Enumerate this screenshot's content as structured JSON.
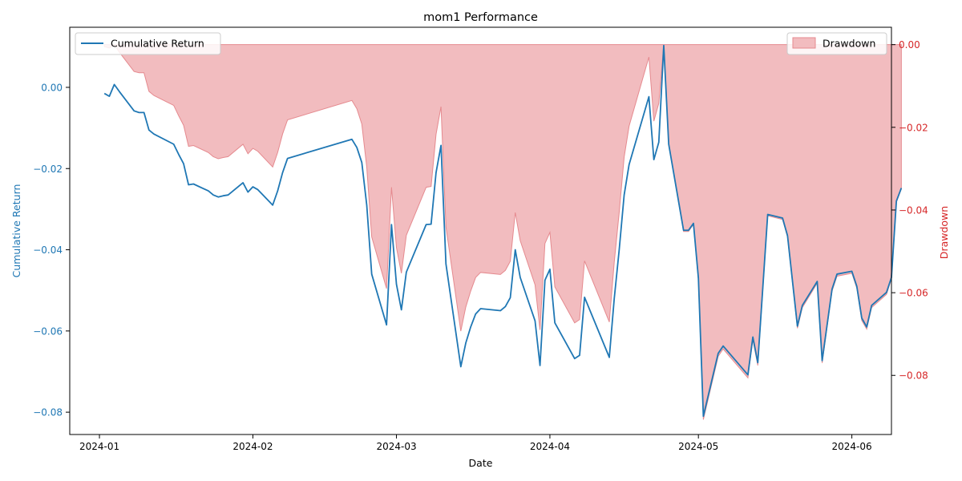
{
  "chart_data": {
    "type": "line",
    "title": "mom1 Performance",
    "xlabel": "Date",
    "ylabel_left": "Cumulative Return",
    "ylabel_right": "Drawdown",
    "colors": {
      "cumulative": "#1f77b4",
      "drawdown_fill": "#f2bcbf",
      "drawdown_edge": "#e58a8f",
      "right_axis": "#d62728"
    },
    "x_ticks": [
      "2024-01-01",
      "2024-02-01",
      "2024-03-01",
      "2024-04-01",
      "2024-05-01",
      "2024-06-01"
    ],
    "x_tick_labels": [
      "2024-01",
      "2024-02",
      "2024-03",
      "2024-04",
      "2024-05",
      "2024-06"
    ],
    "xlim": [
      "2023-12-26",
      "2024-06-09"
    ],
    "y_left": {
      "lim": [
        -0.0855,
        0.0148
      ],
      "ticks": [
        0.0,
        -0.02,
        -0.04,
        -0.06,
        -0.08
      ],
      "tick_labels": [
        "0.00",
        "−0.02",
        "−0.04",
        "−0.06",
        "−0.08"
      ]
    },
    "y_right": {
      "lim": [
        -0.0943,
        0.0042
      ],
      "ticks": [
        0.0,
        -0.02,
        -0.04,
        -0.06,
        -0.08
      ],
      "tick_labels": [
        "0.00",
        "−0.02",
        "−0.04",
        "−0.06",
        "−0.08"
      ]
    },
    "legend_left": {
      "position": "upper-left",
      "label": "Cumulative Return"
    },
    "legend_right": {
      "position": "upper-right",
      "label": "Drawdown"
    },
    "series": [
      {
        "name": "Cumulative Return",
        "axis": "left",
        "points": [
          [
            "2024-01-02",
            -0.0015
          ],
          [
            "2024-01-03",
            -0.0022
          ],
          [
            "2024-01-04",
            0.0007
          ],
          [
            "2024-01-05",
            -0.001
          ],
          [
            "2024-01-08",
            -0.0058
          ],
          [
            "2024-01-09",
            -0.0062
          ],
          [
            "2024-01-10",
            -0.0062
          ],
          [
            "2024-01-11",
            -0.0105
          ],
          [
            "2024-01-12",
            -0.0115
          ],
          [
            "2024-01-16",
            -0.014
          ],
          [
            "2024-01-17",
            -0.0165
          ],
          [
            "2024-01-18",
            -0.0188
          ],
          [
            "2024-01-19",
            -0.024
          ],
          [
            "2024-01-20",
            -0.0238
          ],
          [
            "2024-01-23",
            -0.0255
          ],
          [
            "2024-01-24",
            -0.0265
          ],
          [
            "2024-01-25",
            -0.027
          ],
          [
            "2024-01-26",
            -0.0267
          ],
          [
            "2024-01-27",
            -0.0265
          ],
          [
            "2024-01-30",
            -0.0235
          ],
          [
            "2024-01-31",
            -0.0258
          ],
          [
            "2024-02-01",
            -0.0245
          ],
          [
            "2024-02-02",
            -0.0252
          ],
          [
            "2024-02-05",
            -0.029
          ],
          [
            "2024-02-06",
            -0.0255
          ],
          [
            "2024-02-07",
            -0.021
          ],
          [
            "2024-02-08",
            -0.0175
          ],
          [
            "2024-02-21",
            -0.0128
          ],
          [
            "2024-02-22",
            -0.0148
          ],
          [
            "2024-02-23",
            -0.0185
          ],
          [
            "2024-02-24",
            -0.029
          ],
          [
            "2024-02-25",
            -0.046
          ],
          [
            "2024-02-28",
            -0.0585
          ],
          [
            "2024-02-29",
            -0.0338
          ],
          [
            "2024-03-01",
            -0.0485
          ],
          [
            "2024-03-02",
            -0.0548
          ],
          [
            "2024-03-03",
            -0.0455
          ],
          [
            "2024-03-07",
            -0.0338
          ],
          [
            "2024-03-08",
            -0.0337
          ],
          [
            "2024-03-09",
            -0.021
          ],
          [
            "2024-03-10",
            -0.0143
          ],
          [
            "2024-03-11",
            -0.0435
          ],
          [
            "2024-03-14",
            -0.0688
          ],
          [
            "2024-03-15",
            -0.063
          ],
          [
            "2024-03-16",
            -0.059
          ],
          [
            "2024-03-17",
            -0.0558
          ],
          [
            "2024-03-18",
            -0.0545
          ],
          [
            "2024-03-22",
            -0.055
          ],
          [
            "2024-03-23",
            -0.054
          ],
          [
            "2024-03-24",
            -0.0518
          ],
          [
            "2024-03-25",
            -0.04
          ],
          [
            "2024-03-26",
            -0.0468
          ],
          [
            "2024-03-29",
            -0.0575
          ],
          [
            "2024-03-30",
            -0.0685
          ],
          [
            "2024-03-31",
            -0.0475
          ],
          [
            "2024-04-01",
            -0.0448
          ],
          [
            "2024-04-02",
            -0.058
          ],
          [
            "2024-04-06",
            -0.0668
          ],
          [
            "2024-04-07",
            -0.066
          ],
          [
            "2024-04-08",
            -0.0517
          ],
          [
            "2024-04-13",
            -0.0665
          ],
          [
            "2024-04-14",
            -0.052
          ],
          [
            "2024-04-15",
            -0.04
          ],
          [
            "2024-04-16",
            -0.0265
          ],
          [
            "2024-04-17",
            -0.019
          ],
          [
            "2024-04-21",
            -0.0023
          ],
          [
            "2024-04-22",
            -0.0178
          ],
          [
            "2024-04-23",
            -0.0135
          ],
          [
            "2024-04-24",
            0.0103
          ],
          [
            "2024-04-25",
            -0.014
          ],
          [
            "2024-04-28",
            -0.0352
          ],
          [
            "2024-04-29",
            -0.0352
          ],
          [
            "2024-04-30",
            -0.0335
          ],
          [
            "2024-05-01",
            -0.047
          ],
          [
            "2024-05-02",
            -0.081
          ],
          [
            "2024-05-05",
            -0.0655
          ],
          [
            "2024-05-06",
            -0.0637
          ],
          [
            "2024-05-11",
            -0.0708
          ],
          [
            "2024-05-12",
            -0.0615
          ],
          [
            "2024-05-13",
            -0.0678
          ],
          [
            "2024-05-15",
            -0.0313
          ],
          [
            "2024-05-18",
            -0.0322
          ],
          [
            "2024-05-19",
            -0.0365
          ],
          [
            "2024-05-21",
            -0.0588
          ],
          [
            "2024-05-22",
            -0.0537
          ],
          [
            "2024-05-25",
            -0.0478
          ],
          [
            "2024-05-26",
            -0.0673
          ],
          [
            "2024-05-28",
            -0.0497
          ],
          [
            "2024-05-29",
            -0.046
          ],
          [
            "2024-06-01",
            -0.0453
          ],
          [
            "2024-06-02",
            -0.049
          ],
          [
            "2024-06-03",
            -0.0568
          ],
          [
            "2024-06-04",
            -0.059
          ],
          [
            "2024-06-05",
            -0.0537
          ],
          [
            "2024-06-08",
            -0.0505
          ],
          [
            "2024-06-09",
            -0.0468
          ],
          [
            "2024-06-10",
            -0.028
          ],
          [
            "2024-06-11",
            -0.0248
          ]
        ]
      },
      {
        "name": "Drawdown",
        "axis": "right",
        "points": [
          [
            "2024-01-02",
            -0.0005
          ],
          [
            "2024-01-03",
            -0.0008
          ],
          [
            "2024-01-04",
            0.0
          ],
          [
            "2024-01-05",
            -0.0018
          ],
          [
            "2024-01-08",
            -0.0065
          ],
          [
            "2024-01-09",
            -0.0068
          ],
          [
            "2024-01-10",
            -0.0068
          ],
          [
            "2024-01-11",
            -0.0113
          ],
          [
            "2024-01-12",
            -0.0123
          ],
          [
            "2024-01-16",
            -0.0147
          ],
          [
            "2024-01-17",
            -0.0172
          ],
          [
            "2024-01-18",
            -0.0195
          ],
          [
            "2024-01-19",
            -0.0246
          ],
          [
            "2024-01-20",
            -0.0244
          ],
          [
            "2024-01-23",
            -0.0261
          ],
          [
            "2024-01-24",
            -0.0271
          ],
          [
            "2024-01-25",
            -0.0276
          ],
          [
            "2024-01-26",
            -0.0273
          ],
          [
            "2024-01-27",
            -0.0271
          ],
          [
            "2024-01-30",
            -0.0241
          ],
          [
            "2024-01-31",
            -0.0264
          ],
          [
            "2024-02-01",
            -0.0251
          ],
          [
            "2024-02-02",
            -0.0258
          ],
          [
            "2024-02-05",
            -0.0296
          ],
          [
            "2024-02-06",
            -0.0261
          ],
          [
            "2024-02-07",
            -0.0216
          ],
          [
            "2024-02-08",
            -0.0182
          ],
          [
            "2024-02-21",
            -0.0135
          ],
          [
            "2024-02-22",
            -0.0155
          ],
          [
            "2024-02-23",
            -0.0192
          ],
          [
            "2024-02-24",
            -0.0296
          ],
          [
            "2024-02-25",
            -0.0465
          ],
          [
            "2024-02-28",
            -0.059
          ],
          [
            "2024-02-29",
            -0.0345
          ],
          [
            "2024-03-01",
            -0.0491
          ],
          [
            "2024-03-02",
            -0.0553
          ],
          [
            "2024-03-03",
            -0.0461
          ],
          [
            "2024-03-07",
            -0.0345
          ],
          [
            "2024-03-08",
            -0.0343
          ],
          [
            "2024-03-09",
            -0.0217
          ],
          [
            "2024-03-10",
            -0.015
          ],
          [
            "2024-03-11",
            -0.0441
          ],
          [
            "2024-03-14",
            -0.0693
          ],
          [
            "2024-03-15",
            -0.0635
          ],
          [
            "2024-03-16",
            -0.0596
          ],
          [
            "2024-03-17",
            -0.0563
          ],
          [
            "2024-03-18",
            -0.0551
          ],
          [
            "2024-03-22",
            -0.0556
          ],
          [
            "2024-03-23",
            -0.0546
          ],
          [
            "2024-03-24",
            -0.0524
          ],
          [
            "2024-03-25",
            -0.0406
          ],
          [
            "2024-03-26",
            -0.0474
          ],
          [
            "2024-03-29",
            -0.0581
          ],
          [
            "2024-03-30",
            -0.069
          ],
          [
            "2024-03-31",
            -0.0481
          ],
          [
            "2024-04-01",
            -0.0454
          ],
          [
            "2024-04-02",
            -0.0586
          ],
          [
            "2024-04-06",
            -0.0673
          ],
          [
            "2024-04-07",
            -0.0665
          ],
          [
            "2024-04-08",
            -0.0523
          ],
          [
            "2024-04-13",
            -0.0671
          ],
          [
            "2024-04-14",
            -0.0526
          ],
          [
            "2024-04-15",
            -0.0406
          ],
          [
            "2024-04-16",
            -0.0272
          ],
          [
            "2024-04-17",
            -0.0197
          ],
          [
            "2024-04-21",
            -0.003
          ],
          [
            "2024-04-22",
            -0.0185
          ],
          [
            "2024-04-23",
            -0.0142
          ],
          [
            "2024-04-24",
            0.0
          ],
          [
            "2024-04-25",
            -0.0241
          ],
          [
            "2024-04-28",
            -0.0452
          ],
          [
            "2024-04-29",
            -0.0452
          ],
          [
            "2024-04-30",
            -0.0435
          ],
          [
            "2024-05-01",
            -0.057
          ],
          [
            "2024-05-02",
            -0.0907
          ],
          [
            "2024-05-05",
            -0.0754
          ],
          [
            "2024-05-06",
            -0.0736
          ],
          [
            "2024-05-11",
            -0.0806
          ],
          [
            "2024-05-12",
            -0.0714
          ],
          [
            "2024-05-13",
            -0.0776
          ],
          [
            "2024-05-15",
            -0.0414
          ],
          [
            "2024-05-18",
            -0.0423
          ],
          [
            "2024-05-19",
            -0.0465
          ],
          [
            "2024-05-21",
            -0.0686
          ],
          [
            "2024-05-22",
            -0.0636
          ],
          [
            "2024-05-25",
            -0.0577
          ],
          [
            "2024-05-26",
            -0.077
          ],
          [
            "2024-05-28",
            -0.0596
          ],
          [
            "2024-05-29",
            -0.056
          ],
          [
            "2024-06-01",
            -0.0553
          ],
          [
            "2024-06-02",
            -0.0589
          ],
          [
            "2024-06-03",
            -0.0667
          ],
          [
            "2024-06-04",
            -0.0688
          ],
          [
            "2024-06-05",
            -0.0636
          ],
          [
            "2024-06-08",
            -0.0604
          ],
          [
            "2024-06-09",
            -0.0567
          ],
          [
            "2024-06-10",
            -0.0381
          ],
          [
            "2024-06-11",
            -0.0349
          ]
        ]
      }
    ]
  }
}
